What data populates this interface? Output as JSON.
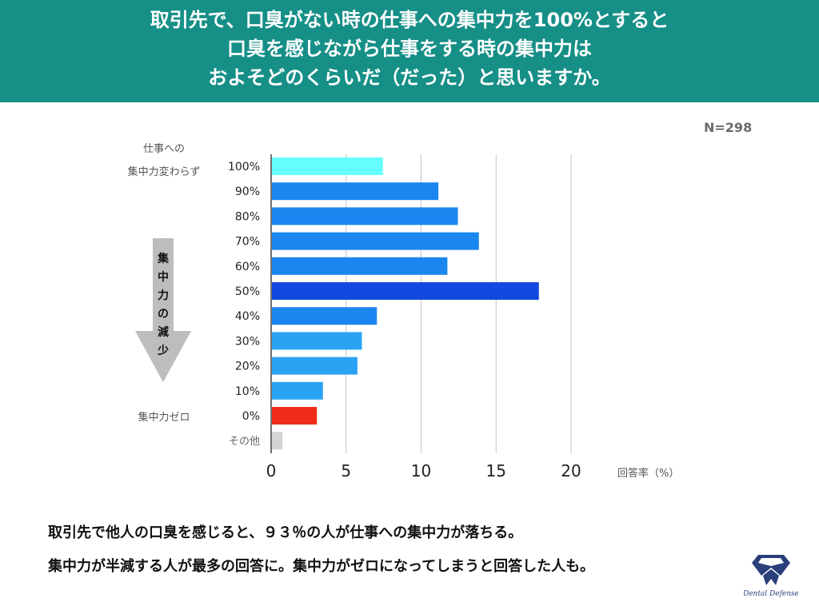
{
  "header": {
    "line1": "取引先で、口臭がない時の仕事への集中力を100%とすると",
    "line2": "口臭を感じながら仕事をする時の集中力は",
    "line3": "およそどのくらいだ（だった）と思いますか。"
  },
  "sample_size": "N=298",
  "side_labels": {
    "top_line1": "仕事への",
    "top_line2": "集中力変わらず",
    "bottom": "集中力ゼロ",
    "arrow_text": [
      "集",
      "中",
      "力",
      "の",
      "減",
      "少"
    ]
  },
  "chart_data": {
    "type": "bar",
    "orientation": "horizontal",
    "categories": [
      "100%",
      "90%",
      "80%",
      "70%",
      "60%",
      "50%",
      "40%",
      "30%",
      "20%",
      "10%",
      "0%",
      "その他"
    ],
    "values": [
      7.4,
      11.1,
      12.4,
      13.8,
      11.7,
      17.8,
      7.0,
      6.0,
      5.7,
      3.4,
      3.0,
      0.7
    ],
    "colors": [
      "#66ffff",
      "#1a86f0",
      "#1a86f0",
      "#1a86f0",
      "#1a86f0",
      "#1449e0",
      "#1a86f0",
      "#2aa3f5",
      "#2aa3f5",
      "#2aa3f5",
      "#ee2c18",
      "#d4d4d4"
    ],
    "xlim": [
      0,
      20
    ],
    "xticks": [
      0,
      5,
      10,
      15,
      20
    ],
    "xlabel": "回答率（%）",
    "grid": true
  },
  "footer": {
    "line1": "取引先で他人の口臭を感じると、９３％の人が仕事への集中力が落ちる。",
    "line2": "集中力が半減する人が最多の回答に。集中力がゼロになってしまうと回答した人も。"
  },
  "logo": {
    "text": "Dental Defense"
  }
}
